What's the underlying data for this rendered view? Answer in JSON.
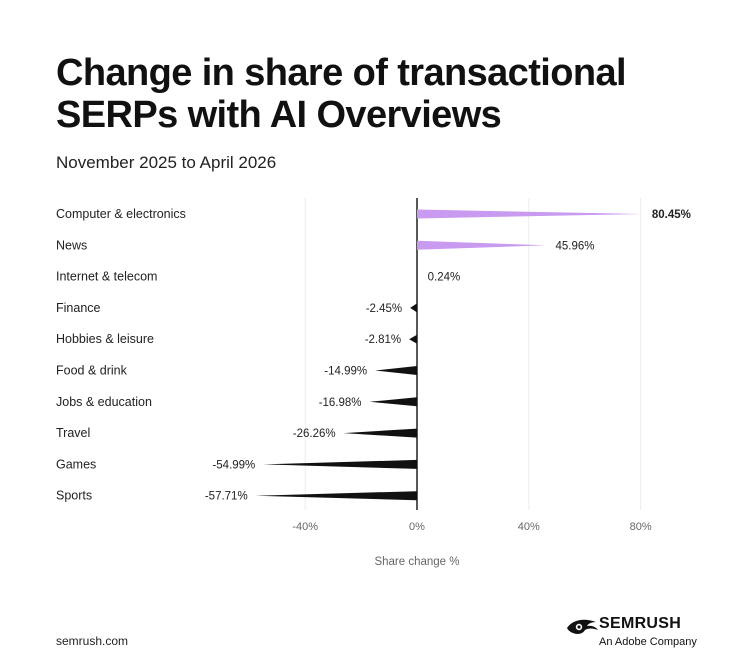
{
  "title": "Change in share of transactional SERPs with AI Overviews",
  "subtitle": "November 2025 to April 2026",
  "footer": {
    "url": "semrush.com",
    "brand_name": "SEMRUSH",
    "brand_tagline": "An Adobe Company",
    "brand_icon": "semrush-flame-icon"
  },
  "colors": {
    "positive": "#c89af0",
    "negative": "#111111",
    "grid": "#ececec",
    "zero_line": "#111111"
  },
  "chart_data": {
    "type": "bar",
    "orientation": "horizontal",
    "categories": [
      "Computer & electronics",
      "News",
      "Internet & telecom",
      "Finance",
      "Hobbies & leisure",
      "Food & drink",
      "Jobs & education",
      "Travel",
      "Games",
      "Sports"
    ],
    "values": [
      80.45,
      45.96,
      0.24,
      -2.45,
      -2.81,
      -14.99,
      -16.98,
      -26.26,
      -54.99,
      -57.71
    ],
    "value_labels": [
      "80.45%",
      "45.96%",
      "0.24%",
      "-2.45%",
      "-2.81%",
      "-14.99%",
      "-16.98%",
      "-26.26%",
      "-54.99%",
      "-57.71%"
    ],
    "xlabel": "Share change %",
    "x_ticks": [
      -40,
      0,
      40,
      80
    ],
    "x_tick_labels": [
      "-40%",
      "0%",
      "40%",
      "80%"
    ],
    "xlim": [
      -60,
      90
    ],
    "grid": true
  }
}
